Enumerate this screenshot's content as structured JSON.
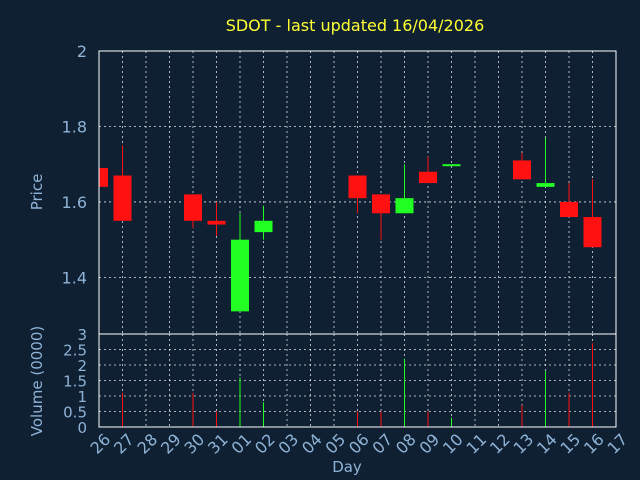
{
  "chart_data": {
    "title": "SDOT - last updated 16/04/2026",
    "xlabel": "Day",
    "colors": {
      "up": "#22ff22",
      "down": "#ff1111",
      "title": "#ffff33",
      "axis": "#8fb3d6",
      "background": "#0f2033"
    },
    "day_ticks": [
      "26",
      "27",
      "28",
      "29",
      "30",
      "31",
      "01",
      "02",
      "03",
      "04",
      "05",
      "06",
      "07",
      "08",
      "09",
      "10",
      "11",
      "12",
      "13",
      "14",
      "15",
      "16",
      "17"
    ],
    "price": {
      "type": "candlestick",
      "ylabel": "Price",
      "ylim": [
        1.25,
        2.0
      ],
      "y_ticks": [
        1.4,
        1.6,
        1.8,
        2
      ],
      "y_tick_labels": [
        "1.4",
        "1.6",
        "1.8",
        "2"
      ],
      "candles": [
        {
          "day": "26",
          "open": 1.69,
          "high": 1.69,
          "low": 1.64,
          "close": 1.64
        },
        {
          "day": "27",
          "open": 1.67,
          "high": 1.75,
          "low": 1.55,
          "close": 1.55
        },
        {
          "day": "30",
          "open": 1.62,
          "high": 1.62,
          "low": 1.53,
          "close": 1.55
        },
        {
          "day": "31",
          "open": 1.55,
          "high": 1.6,
          "low": 1.51,
          "close": 1.54
        },
        {
          "day": "01",
          "open": 1.31,
          "high": 1.57,
          "low": 1.31,
          "close": 1.5
        },
        {
          "day": "02",
          "open": 1.52,
          "high": 1.59,
          "low": 1.5,
          "close": 1.55
        },
        {
          "day": "06",
          "open": 1.67,
          "high": 1.67,
          "low": 1.57,
          "close": 1.61
        },
        {
          "day": "07",
          "open": 1.62,
          "high": 1.62,
          "low": 1.5,
          "close": 1.57
        },
        {
          "day": "08",
          "open": 1.57,
          "high": 1.7,
          "low": 1.57,
          "close": 1.61
        },
        {
          "day": "09",
          "open": 1.68,
          "high": 1.72,
          "low": 1.65,
          "close": 1.65
        },
        {
          "day": "10",
          "open": 1.7,
          "high": 1.7,
          "low": 1.7,
          "close": 1.7
        },
        {
          "day": "13",
          "open": 1.71,
          "high": 1.73,
          "low": 1.66,
          "close": 1.66
        },
        {
          "day": "14",
          "open": 1.64,
          "high": 1.77,
          "low": 1.64,
          "close": 1.65
        },
        {
          "day": "15",
          "open": 1.6,
          "high": 1.65,
          "low": 1.56,
          "close": 1.56
        },
        {
          "day": "16",
          "open": 1.56,
          "high": 1.66,
          "low": 1.48,
          "close": 1.48
        }
      ]
    },
    "volume": {
      "type": "bar",
      "ylabel": "Volume (0000)",
      "ylim": [
        0,
        3
      ],
      "y_ticks": [
        0,
        0.5,
        1,
        1.5,
        2,
        2.5,
        3
      ],
      "y_tick_labels": [
        "0",
        "0.5",
        "1",
        "1.5",
        "2",
        "2.5",
        "3"
      ],
      "bars": [
        {
          "day": "27",
          "value": 1.1,
          "direction": "down"
        },
        {
          "day": "30",
          "value": 1.1,
          "direction": "down"
        },
        {
          "day": "31",
          "value": 0.5,
          "direction": "down"
        },
        {
          "day": "01",
          "value": 1.6,
          "direction": "up"
        },
        {
          "day": "02",
          "value": 0.8,
          "direction": "up"
        },
        {
          "day": "06",
          "value": 0.5,
          "direction": "down"
        },
        {
          "day": "07",
          "value": 0.5,
          "direction": "down"
        },
        {
          "day": "08",
          "value": 2.2,
          "direction": "up"
        },
        {
          "day": "09",
          "value": 0.5,
          "direction": "down"
        },
        {
          "day": "10",
          "value": 0.3,
          "direction": "up"
        },
        {
          "day": "13",
          "value": 0.7,
          "direction": "down"
        },
        {
          "day": "14",
          "value": 1.8,
          "direction": "up"
        },
        {
          "day": "15",
          "value": 1.1,
          "direction": "down"
        },
        {
          "day": "16",
          "value": 2.7,
          "direction": "down"
        }
      ]
    }
  }
}
